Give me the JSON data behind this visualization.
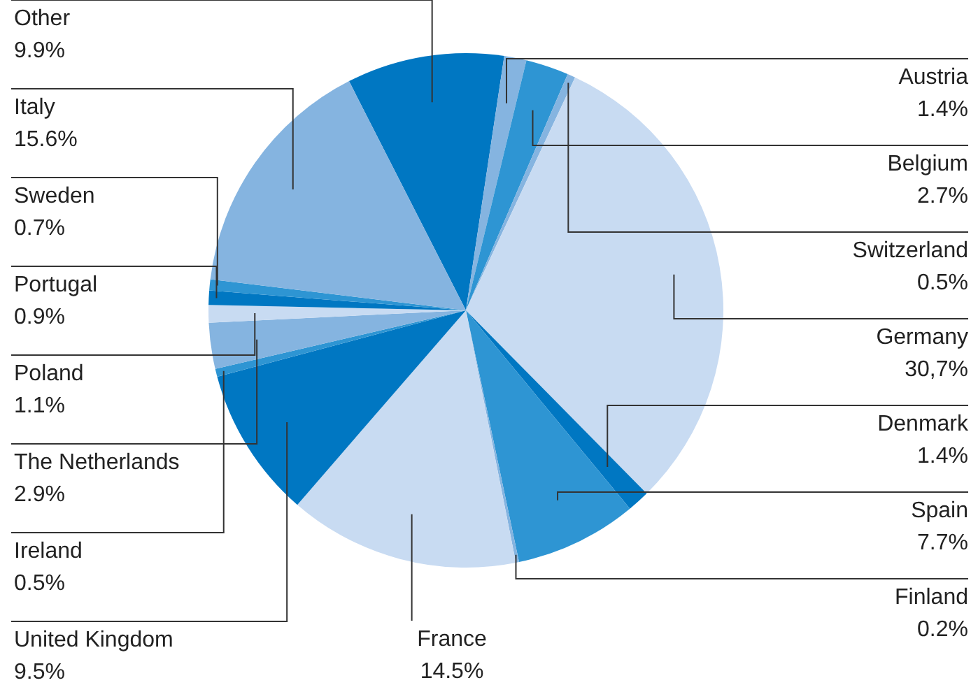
{
  "chart_data": {
    "type": "pie",
    "categories": [
      "Other",
      "Austria",
      "Belgium",
      "Switzerland",
      "Germany",
      "Denmark",
      "Spain",
      "Finland",
      "France",
      "United Kingdom",
      "Ireland",
      "The Netherlands",
      "Poland",
      "Portugal",
      "Sweden",
      "Italy"
    ],
    "values": [
      9.9,
      1.4,
      2.7,
      0.5,
      30.7,
      1.4,
      7.7,
      0.2,
      14.5,
      9.5,
      0.5,
      2.9,
      1.1,
      0.9,
      0.7,
      15.6
    ],
    "value_labels": [
      "9.9%",
      "1.4%",
      "2.7%",
      "0.5%",
      "30,7%",
      "1.4%",
      "7.7%",
      "0.2%",
      "14.5%",
      "9.5%",
      "0.5%",
      "2.9%",
      "1.1%",
      "0.9%",
      "0.7%",
      "15.6%"
    ],
    "colors": [
      "#0077c2",
      "#85b4e0",
      "#2e95d3",
      "#85b4e0",
      "#c8dbf2",
      "#0077c2",
      "#2e95d3",
      "#85b4e0",
      "#c8dbf2",
      "#0077c2",
      "#2e95d3",
      "#85b4e0",
      "#c8dbf2",
      "#0077c2",
      "#2e95d3",
      "#85b4e0"
    ],
    "legend": false
  }
}
